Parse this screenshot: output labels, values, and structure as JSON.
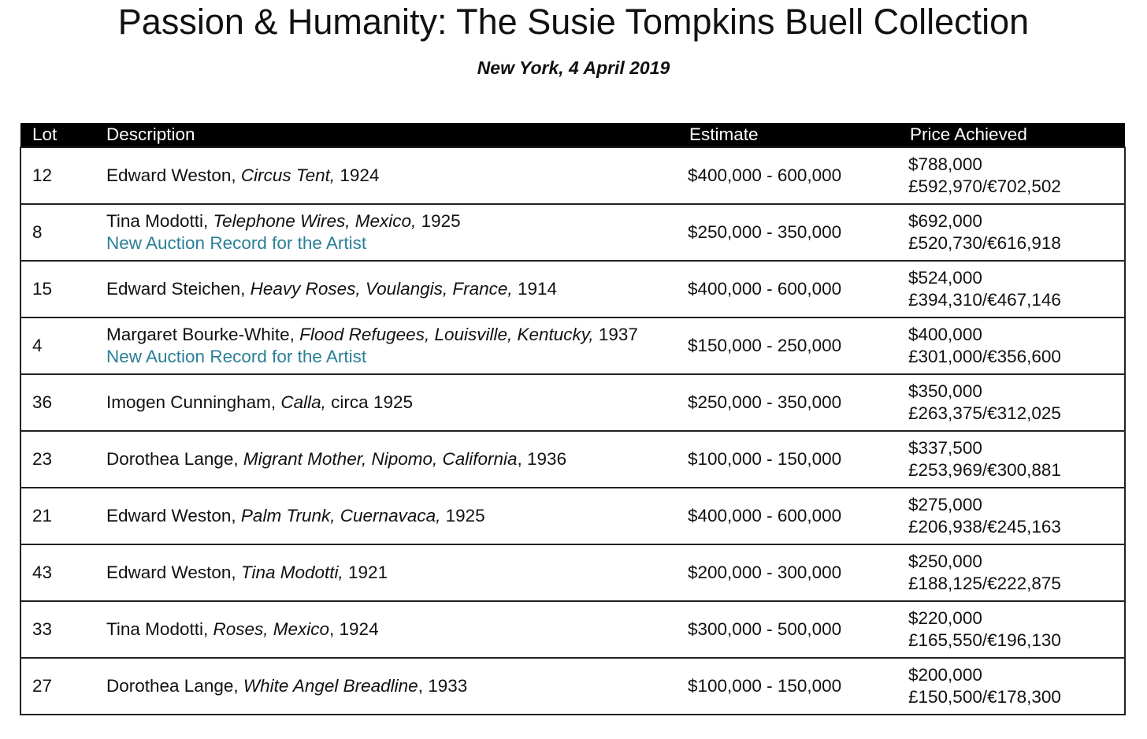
{
  "title": "Passion & Humanity: The Susie Tompkins Buell Collection",
  "subtitle": "New York, 4 April 2019",
  "columns": {
    "lot": "Lot",
    "description": "Description",
    "estimate": "Estimate",
    "price": "Price Achieved"
  },
  "colors": {
    "header_bg": "#000000",
    "record_link": "#2a7f96"
  },
  "rows": [
    {
      "lot": "12",
      "artist": "Edward Weston, ",
      "work": "Circus Tent,",
      "post": " 1924",
      "note": "",
      "estimate": "$400,000 - 600,000",
      "price_usd": "$788,000",
      "price_other": "£592,970/€702,502"
    },
    {
      "lot": "8",
      "artist": "Tina Modotti, ",
      "work": "Telephone Wires, Mexico,",
      "post": " 1925",
      "note": "New Auction Record for the Artist",
      "estimate": "$250,000 - 350,000",
      "price_usd": "$692,000",
      "price_other": "£520,730/€616,918"
    },
    {
      "lot": "15",
      "artist": "Edward Steichen, ",
      "work": "Heavy Roses, Voulangis, France,",
      "post": " 1914",
      "note": "",
      "estimate": "$400,000 - 600,000",
      "price_usd": "$524,000",
      "price_other": "£394,310/€467,146"
    },
    {
      "lot": "4",
      "artist": "Margaret Bourke-White, ",
      "work": "Flood Refugees, Louisville, Kentucky,",
      "post": " 1937",
      "note": "New Auction Record for the Artist",
      "estimate": "$150,000 - 250,000",
      "price_usd": "$400,000",
      "price_other": "£301,000/€356,600"
    },
    {
      "lot": "36",
      "artist": "Imogen Cunningham, ",
      "work": "Calla,",
      "post": " circa 1925",
      "note": "",
      "estimate": "$250,000 - 350,000",
      "price_usd": "$350,000",
      "price_other": "£263,375/€312,025"
    },
    {
      "lot": "23",
      "artist": "Dorothea Lange, ",
      "work": "Migrant Mother, Nipomo, California",
      "post": ", 1936",
      "note": "",
      "estimate": "$100,000 - 150,000",
      "price_usd": "$337,500",
      "price_other": "£253,969/€300,881"
    },
    {
      "lot": "21",
      "artist": "Edward Weston, ",
      "work": "Palm Trunk, Cuernavaca,",
      "post": " 1925",
      "note": "",
      "estimate": "$400,000 - 600,000",
      "price_usd": "$275,000",
      "price_other": "£206,938/€245,163"
    },
    {
      "lot": "43",
      "artist": "Edward Weston, ",
      "work": "Tina Modotti,",
      "post": " 1921",
      "note": "",
      "estimate": "$200,000 - 300,000",
      "price_usd": "$250,000",
      "price_other": "£188,125/€222,875"
    },
    {
      "lot": "33",
      "artist": "Tina Modotti, ",
      "work": "Roses, Mexico",
      "post": ", 1924",
      "note": "",
      "estimate": "$300,000 - 500,000",
      "price_usd": "$220,000",
      "price_other": "£165,550/€196,130"
    },
    {
      "lot": "27",
      "artist": "Dorothea Lange, ",
      "work": "White Angel Breadline",
      "post": ", 1933",
      "note": "",
      "estimate": "$100,000 - 150,000",
      "price_usd": "$200,000",
      "price_other": "£150,500/€178,300"
    }
  ]
}
